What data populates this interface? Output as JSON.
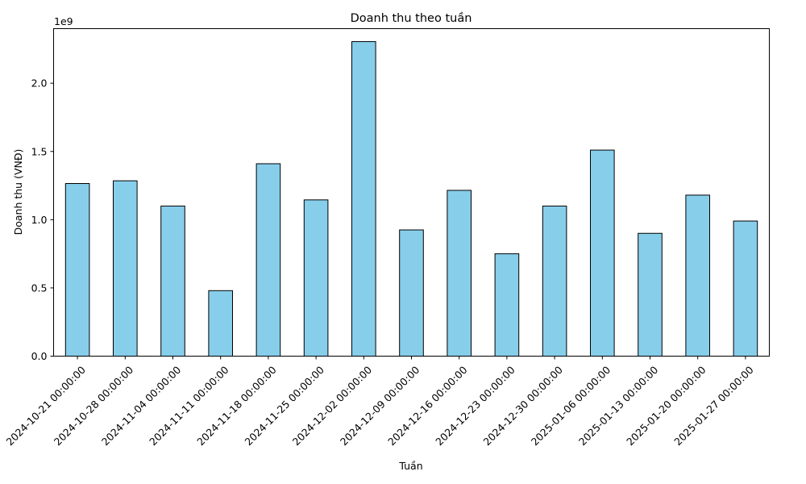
{
  "chart_data": {
    "type": "bar",
    "title": "Doanh thu theo tuần",
    "xlabel": "Tuần",
    "ylabel": "Doanh thu (VNĐ)",
    "y_offset_label": "1e9",
    "y_scale": 1000000000,
    "ylim": [
      0,
      2400000000
    ],
    "yticks": [
      0,
      500000000,
      1000000000,
      1500000000,
      2000000000
    ],
    "ytick_labels": [
      "0.0",
      "0.5",
      "1.0",
      "1.5",
      "2.0"
    ],
    "grid": false,
    "legend": "none",
    "bar_color": "#87ceeb",
    "bar_edge_color": "#000000",
    "categories": [
      "2024-10-21 00:00:00",
      "2024-10-28 00:00:00",
      "2024-11-04 00:00:00",
      "2024-11-11 00:00:00",
      "2024-11-18 00:00:00",
      "2024-11-25 00:00:00",
      "2024-12-02 00:00:00",
      "2024-12-09 00:00:00",
      "2024-12-16 00:00:00",
      "2024-12-23 00:00:00",
      "2024-12-30 00:00:00",
      "2025-01-06 00:00:00",
      "2025-01-13 00:00:00",
      "2025-01-20 00:00:00",
      "2025-01-27 00:00:00"
    ],
    "values": [
      1265000000,
      1285000000,
      1100000000,
      480000000,
      1410000000,
      1145000000,
      2305000000,
      925000000,
      1215000000,
      750000000,
      1100000000,
      1510000000,
      900000000,
      1180000000,
      990000000
    ]
  }
}
